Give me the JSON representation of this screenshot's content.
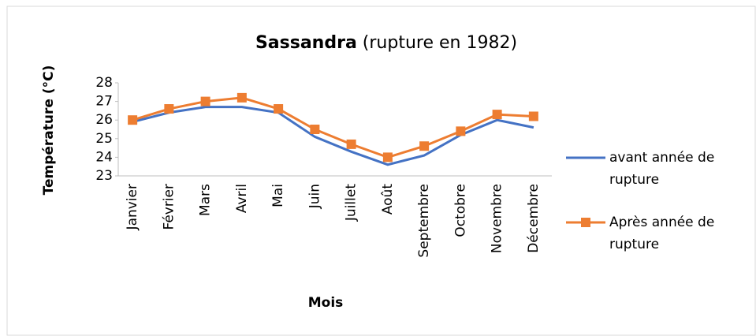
{
  "chart_data": {
    "type": "line",
    "title": [
      "Sassandra",
      "(rupture en 1982)"
    ],
    "x_label": "Mois",
    "y_label": "Température (°C)",
    "categories": [
      "Janvier",
      "Février",
      "Mars",
      "Avril",
      "Mai",
      "Juin",
      "Juillet",
      "Août",
      "Septembre",
      "Octobre",
      "Novembre",
      "Décembre"
    ],
    "series": [
      {
        "name": "avant année de rupture",
        "color": "#4472c4",
        "marker": "none",
        "values": [
          25.9,
          26.4,
          26.7,
          26.7,
          26.4,
          25.1,
          24.3,
          23.6,
          24.1,
          25.2,
          26.0,
          25.6
        ]
      },
      {
        "name": "Après année de rupture",
        "color": "#ed7d31",
        "marker": "square",
        "values": [
          26.0,
          26.6,
          27.0,
          27.2,
          26.6,
          25.5,
          24.7,
          24.0,
          24.6,
          25.4,
          26.3,
          26.2
        ]
      }
    ],
    "ylim": [
      23,
      28
    ],
    "yticks": [
      23,
      24,
      25,
      26,
      27,
      28
    ],
    "grid": false,
    "legend": "right"
  }
}
